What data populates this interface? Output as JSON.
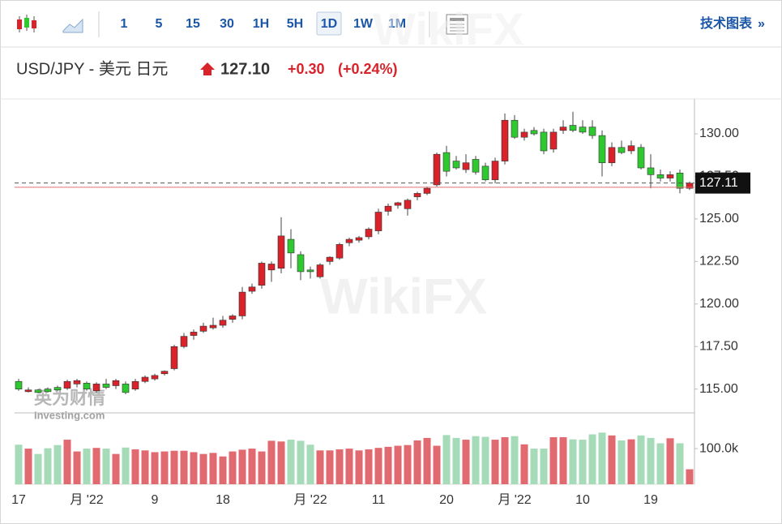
{
  "toolbar": {
    "intervals": [
      "1",
      "5",
      "15",
      "30",
      "1H",
      "5H",
      "1D",
      "1W",
      "1M"
    ],
    "active": "1D",
    "link": "技术图表",
    "link_arrow": "»"
  },
  "header": {
    "symbol": "USD/JPY - 美元 日元",
    "price": "127.10",
    "change": "+0.30",
    "change_pct": "(+0.24%)"
  },
  "watermarks": [
    "WikiFX",
    "WikiFX",
    "英为财情",
    "Investing.com"
  ],
  "chart_data": {
    "type": "candlestick",
    "categories": [
      "17",
      null,
      null,
      null,
      null,
      null,
      null,
      "月 '22",
      null,
      null,
      null,
      null,
      null,
      null,
      "9",
      null,
      null,
      null,
      null,
      null,
      null,
      "18",
      null,
      null,
      null,
      null,
      null,
      null,
      null,
      null,
      "月 '22",
      null,
      null,
      null,
      null,
      null,
      null,
      "11",
      null,
      null,
      null,
      null,
      null,
      null,
      "20",
      null,
      null,
      null,
      null,
      null,
      null,
      "月 '22",
      null,
      null,
      null,
      null,
      null,
      null,
      "10",
      null,
      null,
      null,
      null,
      null,
      null,
      "19",
      null,
      null,
      null,
      null
    ],
    "open": [
      115.45,
      114.85,
      114.95,
      115.0,
      115.1,
      115.05,
      115.3,
      115.35,
      114.9,
      115.3,
      115.2,
      115.3,
      115.0,
      115.45,
      115.6,
      115.9,
      116.2,
      117.5,
      118.15,
      118.4,
      118.6,
      118.75,
      119.1,
      119.3,
      120.75,
      121.1,
      122.0,
      122.1,
      123.8,
      122.9,
      122.0,
      121.6,
      122.5,
      122.7,
      123.6,
      123.75,
      123.95,
      124.3,
      125.45,
      125.8,
      125.6,
      126.3,
      126.5,
      127.0,
      128.9,
      128.4,
      127.9,
      128.5,
      128.1,
      127.3,
      128.4,
      130.8,
      129.8,
      130.2,
      130.1,
      129.1,
      130.2,
      130.5,
      130.4,
      130.4,
      129.9,
      128.3,
      129.2,
      129.0,
      129.2,
      128.0,
      127.6,
      127.4,
      127.7,
      126.8
    ],
    "high": [
      115.6,
      115.1,
      115.0,
      115.1,
      115.2,
      115.55,
      115.6,
      115.45,
      115.4,
      115.6,
      115.6,
      115.45,
      115.6,
      115.8,
      115.9,
      116.1,
      117.6,
      118.3,
      118.5,
      118.9,
      119.2,
      119.3,
      119.4,
      121.0,
      121.2,
      122.5,
      122.5,
      125.1,
      124.4,
      123.1,
      122.2,
      122.4,
      122.8,
      123.6,
      123.9,
      124.0,
      124.5,
      125.6,
      125.9,
      126.0,
      126.2,
      126.6,
      126.9,
      128.9,
      129.3,
      128.7,
      128.8,
      128.7,
      128.3,
      128.6,
      131.2,
      131.1,
      130.3,
      130.4,
      130.3,
      130.3,
      130.8,
      131.3,
      130.8,
      130.8,
      130.2,
      129.5,
      129.6,
      129.6,
      129.4,
      128.8,
      127.9,
      127.8,
      127.9,
      127.2
    ],
    "low": [
      114.9,
      114.8,
      114.75,
      114.8,
      114.9,
      114.95,
      115.1,
      114.9,
      114.8,
      115.0,
      115.0,
      114.7,
      114.9,
      115.35,
      115.5,
      115.8,
      116.1,
      117.4,
      117.9,
      118.3,
      118.5,
      118.6,
      118.9,
      119.1,
      120.6,
      120.9,
      121.3,
      121.8,
      122.1,
      121.4,
      121.5,
      121.5,
      122.3,
      122.6,
      123.4,
      123.6,
      123.8,
      124.1,
      125.2,
      125.6,
      125.2,
      126.1,
      126.4,
      126.9,
      127.5,
      127.9,
      127.7,
      127.6,
      127.2,
      127.1,
      128.2,
      129.7,
      129.6,
      129.9,
      128.8,
      128.9,
      130.0,
      130.1,
      130.0,
      129.7,
      127.5,
      128.1,
      128.8,
      128.8,
      127.9,
      126.8,
      127.2,
      127.2,
      126.5,
      126.7
    ],
    "close": [
      115.0,
      114.95,
      114.8,
      114.85,
      114.95,
      115.45,
      115.5,
      115.0,
      115.3,
      115.1,
      115.5,
      114.8,
      115.45,
      115.7,
      115.8,
      116.05,
      117.5,
      118.1,
      118.35,
      118.7,
      118.75,
      119.05,
      119.3,
      120.7,
      121.0,
      122.4,
      122.35,
      124.0,
      123.0,
      121.9,
      121.9,
      122.3,
      122.75,
      123.5,
      123.8,
      123.9,
      124.4,
      125.4,
      125.75,
      125.95,
      126.1,
      126.5,
      126.8,
      128.8,
      127.8,
      128.0,
      128.3,
      127.75,
      127.3,
      128.4,
      130.8,
      129.8,
      130.1,
      130.0,
      129.0,
      130.1,
      130.4,
      130.2,
      130.1,
      129.9,
      128.3,
      129.2,
      128.9,
      129.3,
      128.0,
      127.6,
      127.4,
      127.6,
      126.8,
      127.1
    ],
    "volume": [
      111000,
      100000,
      85000,
      101000,
      110000,
      125000,
      92000,
      100000,
      102000,
      100000,
      85000,
      103000,
      98000,
      95000,
      90000,
      92000,
      94000,
      94000,
      90000,
      85000,
      88000,
      78000,
      92000,
      97000,
      100000,
      92000,
      122000,
      120000,
      125000,
      122000,
      111000,
      95000,
      95000,
      98000,
      100000,
      95000,
      98000,
      102000,
      105000,
      108000,
      110000,
      123000,
      130000,
      108000,
      138000,
      130000,
      125000,
      135000,
      133000,
      125000,
      132000,
      135000,
      112000,
      100000,
      100000,
      132000,
      132000,
      126000,
      125000,
      140000,
      145000,
      137000,
      123000,
      126000,
      137000,
      130000,
      115000,
      129000,
      115000,
      42000
    ],
    "up_color": "#d9222a",
    "down_color": "#2ec92e",
    "volume_up_color": "#e06a6f",
    "volume_down_color": "#a6dbb8",
    "ylim": [
      113.65,
      132.05
    ],
    "yticks": [
      {
        "value": 115,
        "label": "115.00"
      },
      {
        "value": 117.5,
        "label": "117.50"
      },
      {
        "value": 120,
        "label": "120.00"
      },
      {
        "value": 122.5,
        "label": "122.50"
      },
      {
        "value": 125,
        "label": "125.00"
      },
      {
        "value": 127.5,
        "label": "127.50"
      },
      {
        "value": 130,
        "label": "130.00"
      }
    ],
    "volume_ylim": [
      0,
      198000
    ],
    "volume_yticks": [
      {
        "value": 100000,
        "label": "100.0k"
      }
    ],
    "last_price": 127.11,
    "reference_line": 126.86
  }
}
